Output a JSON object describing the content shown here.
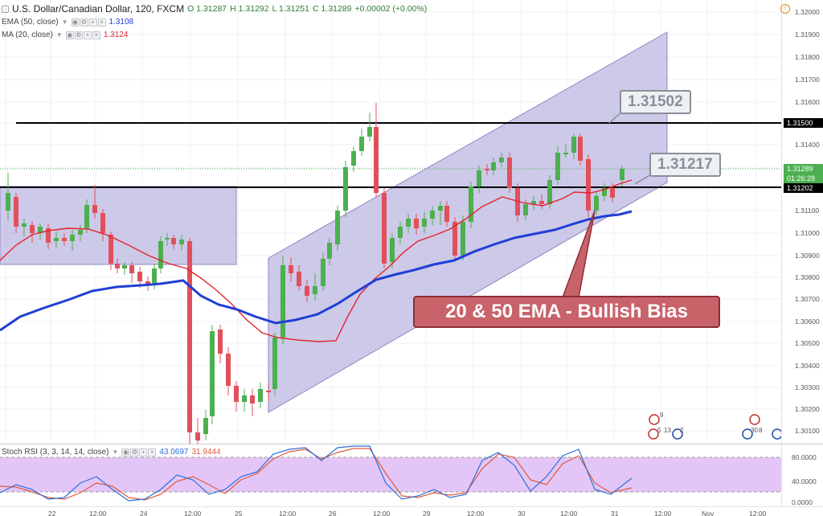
{
  "legend": {
    "symbol": "U.S. Dollar/Canadian Dollar, 120, FXCM",
    "ohlc": {
      "o": "O 1.31287",
      "h": "H 1.31292",
      "l": "L 1.31251",
      "c": "C 1.31289",
      "chg": "+0.00002 (+0.00%)"
    },
    "ema_label": "EMA (50, close)",
    "ema_value": "1.3108",
    "ma_label": "MA (20, close)",
    "ma_value": "1.3124",
    "stoch_label": "Stoch RSI (3, 3, 14, 14, close)",
    "stoch_k": "43.0697",
    "stoch_d": "31.9444"
  },
  "price_axis": {
    "ticks": [
      "1.32000",
      "1.31900",
      "1.31800",
      "1.31700",
      "1.31600",
      "1.31500",
      "1.31400",
      "1.31300",
      "1.31200",
      "1.31100",
      "1.31000",
      "1.30900",
      "1.30800",
      "1.30700",
      "1.30600",
      "1.30500",
      "1.30400",
      "1.30300",
      "1.30200",
      "1.30100"
    ],
    "tag_resistance": "1.31500",
    "tag_last": "1.31289",
    "tag_countdown": "01:26:28",
    "tag_support": "1.31202"
  },
  "osc_axis": {
    "ticks": [
      "80.0000",
      "40.0000",
      "0.0000"
    ]
  },
  "time_axis": {
    "labels": [
      "22",
      "12:00",
      "24",
      "12:00",
      "25",
      "12:00",
      "26",
      "12:00",
      "29",
      "12:00",
      "30",
      "12:00",
      "31",
      "12:00",
      "Nov",
      "12:00"
    ]
  },
  "annotations": {
    "callout_upper": "1.31502",
    "callout_lower": "1.31217",
    "bias_text": "20 & 50 EMA - Bullish Bias"
  },
  "event_badges": [
    "9",
    "5",
    "13",
    "2",
    "30",
    "8",
    "5"
  ],
  "colors": {
    "bull": "#4caf50",
    "bear": "#e0505c",
    "ema50": "#1f3fd6",
    "ma20": "#e3232c",
    "channel_fill": "#b8b2de",
    "stoch_k": "#2d6fd8",
    "stoch_d": "#e05a3a",
    "stoch_band": "#e3c6f7"
  }
}
